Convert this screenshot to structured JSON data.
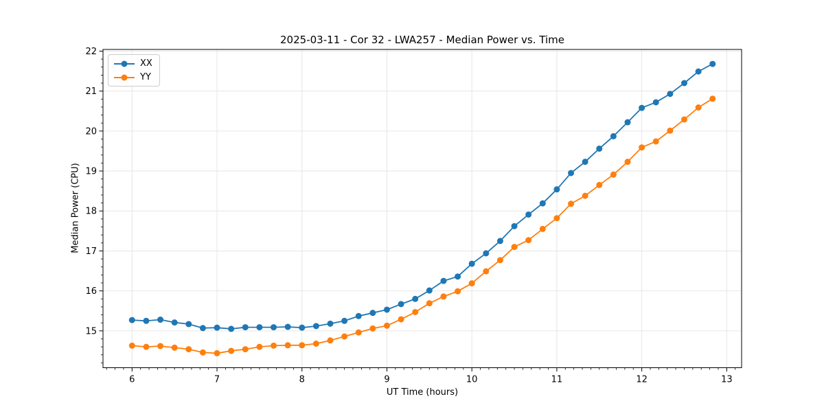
{
  "figure": {
    "background_color": "#ffffff",
    "text_color": "#000000",
    "grid_color": "#e6e6e6",
    "spine_color": "#000000"
  },
  "chart_data": {
    "type": "line",
    "title": "2025-03-11 - Cor 32 - LWA257 - Median Power vs. Time",
    "xlabel": "UT Time (hours)",
    "ylabel": "Median Power (CPU)",
    "xlim": [
      5.658,
      13.175
    ],
    "ylim": [
      14.078,
      22.042
    ],
    "xticks": [
      6,
      7,
      8,
      9,
      10,
      11,
      12,
      13
    ],
    "yticks": [
      15,
      16,
      17,
      18,
      19,
      20,
      21,
      22
    ],
    "x_minor_step": 0.1,
    "y_minor_step": 0.2,
    "grid": "major",
    "legend_position": "upper left",
    "marker": "circle",
    "x": [
      6.0,
      6.1667,
      6.3333,
      6.5,
      6.6667,
      6.8333,
      7.0,
      7.1667,
      7.3333,
      7.5,
      7.6667,
      7.8333,
      8.0,
      8.1667,
      8.3333,
      8.5,
      8.6667,
      8.8333,
      9.0,
      9.1667,
      9.3333,
      9.5,
      9.6667,
      9.8333,
      10.0,
      10.1667,
      10.3333,
      10.5,
      10.6667,
      10.8333,
      11.0,
      11.1667,
      11.3333,
      11.5,
      11.6667,
      11.8333,
      12.0,
      12.1667,
      12.3333,
      12.5,
      12.6667,
      12.8333
    ],
    "series": [
      {
        "name": "XX",
        "color": "#1f77b4",
        "values": [
          15.27,
          15.25,
          15.28,
          15.21,
          15.17,
          15.07,
          15.08,
          15.05,
          15.09,
          15.09,
          15.09,
          15.1,
          15.08,
          15.12,
          15.18,
          15.25,
          15.37,
          15.45,
          15.53,
          15.67,
          15.8,
          16.01,
          16.25,
          16.36,
          16.68,
          16.94,
          17.25,
          17.62,
          17.91,
          18.19,
          18.54,
          18.95,
          19.23,
          19.56,
          19.87,
          20.22,
          20.58,
          20.72,
          20.93,
          21.2,
          21.49,
          21.68
        ]
      },
      {
        "name": "YY",
        "color": "#ff7f0e",
        "values": [
          14.63,
          14.6,
          14.62,
          14.58,
          14.54,
          14.46,
          14.44,
          14.5,
          14.54,
          14.6,
          14.63,
          14.64,
          14.64,
          14.68,
          14.76,
          14.86,
          14.96,
          15.06,
          15.13,
          15.29,
          15.47,
          15.69,
          15.86,
          15.99,
          16.19,
          16.49,
          16.77,
          17.1,
          17.27,
          17.55,
          17.82,
          18.18,
          18.38,
          18.65,
          18.91,
          19.23,
          19.59,
          19.74,
          20.01,
          20.29,
          20.59,
          20.81
        ]
      }
    ]
  }
}
